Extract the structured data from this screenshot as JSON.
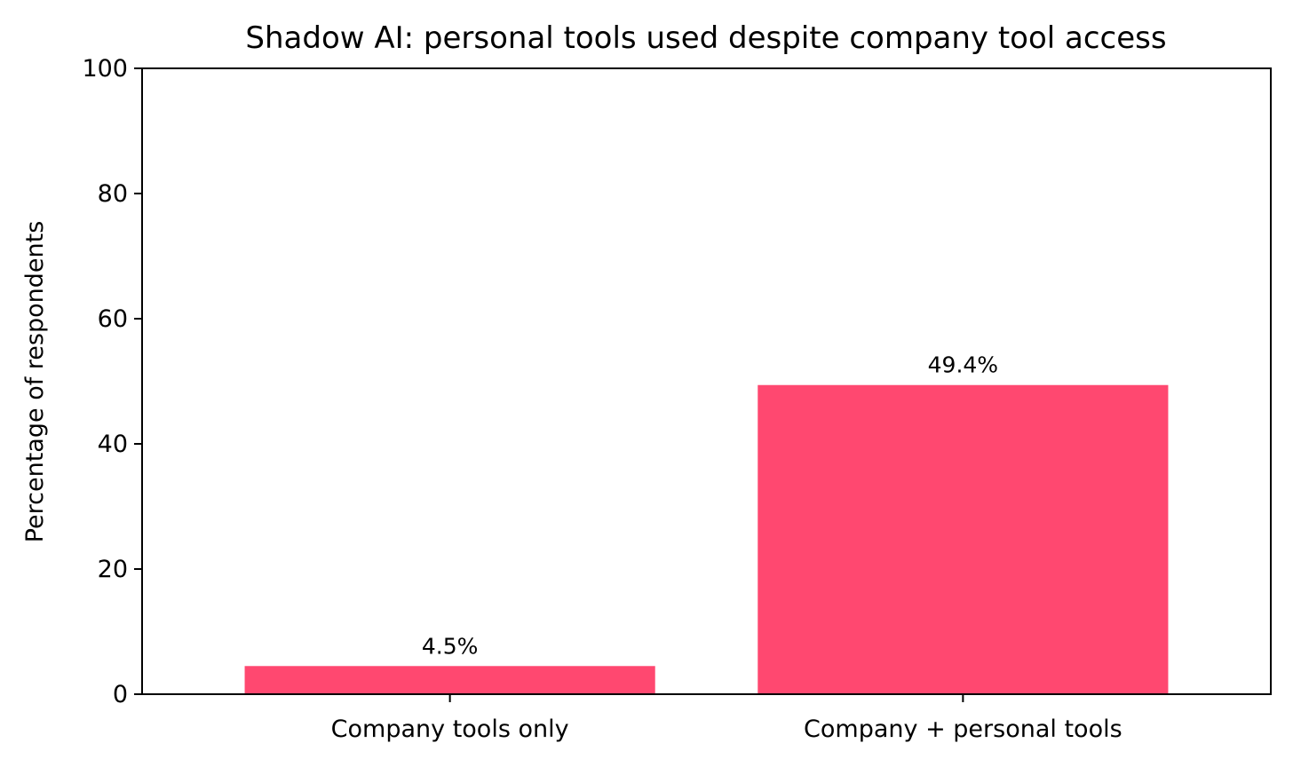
{
  "chart_data": {
    "type": "bar",
    "title": "Shadow AI: personal tools used despite company tool access",
    "xlabel": "",
    "ylabel": "Percentage of respondents",
    "categories": [
      "Company tools only",
      "Company + personal tools"
    ],
    "values": [
      4.5,
      49.4
    ],
    "data_labels": [
      "4.5%",
      "49.4%"
    ],
    "ylim": [
      0,
      100
    ],
    "yticks": [
      0,
      20,
      40,
      60,
      80,
      100
    ],
    "ytick_labels": [
      "0",
      "20",
      "40",
      "60",
      "80",
      "100"
    ],
    "grid": false,
    "legend": "none",
    "bar_color": "#ff4870"
  }
}
